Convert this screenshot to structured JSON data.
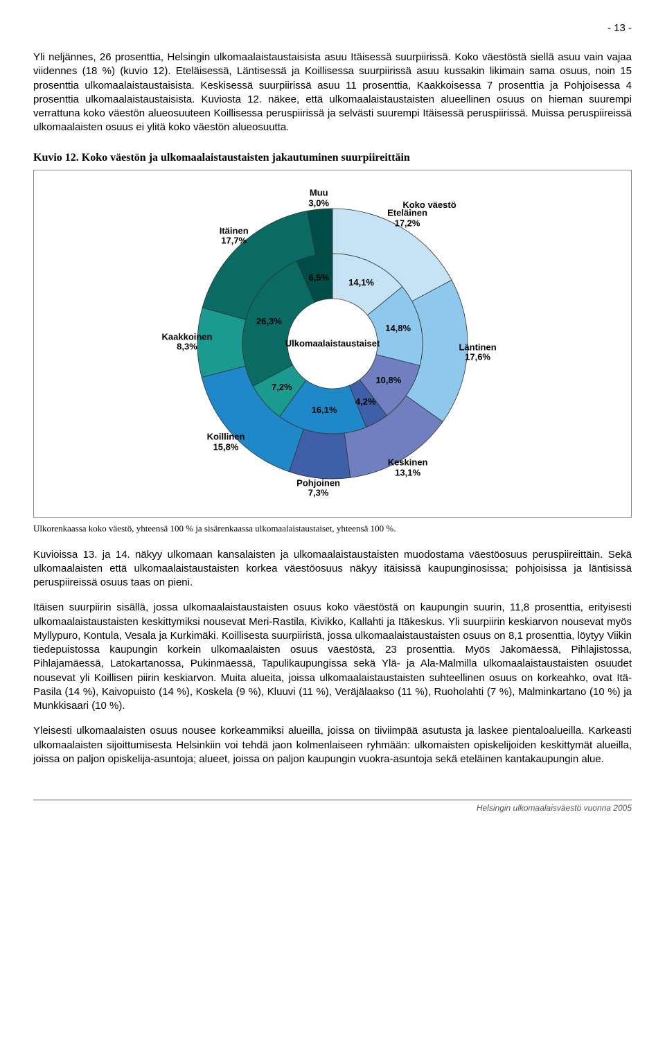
{
  "page_number": "- 13 -",
  "para1": "Yli neljännes, 26 prosenttia, Helsingin ulkomaalaistaustaisista asuu Itäisessä suurpiirissä. Koko väestöstä siellä asuu vain vajaa viidennes (18 %) (kuvio 12). Eteläisessä, Läntisessä ja Koillisessa suurpiirissä asuu kussakin likimain sama osuus, noin 15 prosenttia ulkomaalaistaustaisista. Keskisessä suurpiirissä asuu 11 prosenttia, Kaakkoisessa 7 prosenttia ja Pohjoisessa 4 prosenttia ulkomaalaistaustaisista. Kuviosta 12. näkee, että ulkomaalaistaustaisten alueellinen osuus on hieman suurempi verrattuna koko väestön alueosuuteen Koillisessa peruspiirissä ja selvästi suurempi Itäisessä peruspiirissä. Muissa peruspiireissä ulkomaalaisten osuus ei ylitä koko väestön alueosuutta.",
  "chart_heading": "Kuvio 12. Koko väestön ja ulkomaalaistaustaisten jakautuminen suurpiireittäin",
  "chart_caption": "Ulkorenkaassa koko väestö, yhteensä 100 % ja sisärenkaassa ulkomaalaistaustaiset, yhteensä 100 %.",
  "chart": {
    "type": "nested-donut",
    "outer_ring": {
      "label": "Koko väestö",
      "segments": [
        {
          "name": "Eteläinen",
          "value": 17.2,
          "color": "#c6e2f5"
        },
        {
          "name": "Läntinen",
          "value": 17.6,
          "color": "#8ec8ed"
        },
        {
          "name": "Keskinen",
          "value": 13.1,
          "color": "#6f7fbf"
        },
        {
          "name": "Pohjoinen",
          "value": 7.3,
          "color": "#3f5fa8"
        },
        {
          "name": "Koillinen",
          "value": 15.8,
          "color": "#1f88c9"
        },
        {
          "name": "Kaakkoinen",
          "value": 8.3,
          "color": "#1b9a90"
        },
        {
          "name": "Itäinen",
          "value": 17.7,
          "color": "#0a6b64"
        },
        {
          "name": "Muu",
          "value": 3.0,
          "color": "#004d47"
        }
      ]
    },
    "inner_ring": {
      "label": "Ulkomaalaistaustaiset",
      "segments": [
        {
          "name": "Eteläinen",
          "value": 14.1,
          "color": "#c6e2f5"
        },
        {
          "name": "Läntinen",
          "value": 14.8,
          "color": "#8ec8ed"
        },
        {
          "name": "Keskinen",
          "value": 10.8,
          "color": "#6f7fbf"
        },
        {
          "name": "Pohjoinen",
          "value": 4.2,
          "color": "#3f5fa8"
        },
        {
          "name": "Koillinen",
          "value": 16.1,
          "color": "#1f88c9"
        },
        {
          "name": "Kaakkoinen",
          "value": 7.2,
          "color": "#1b9a90"
        },
        {
          "name": "Itäinen",
          "value": 26.3,
          "color": "#0a6b64"
        },
        {
          "name": "Muu",
          "value": 6.5,
          "color": "#004d47"
        }
      ]
    },
    "stroke_color": "#333333",
    "background_color": "#ffffff"
  },
  "para2": "Kuvioissa 13. ja 14. näkyy ulkomaan kansalaisten ja ulkomaalaistaustaisten muodostama väestöosuus peruspiireittäin. Sekä ulkomaalaisten että ulkomaalaistaustaisten korkea väestöosuus näkyy itäisissä kaupunginosissa; pohjoisissa ja läntisissä peruspiireissä osuus taas on pieni.",
  "para3": "Itäisen suurpiirin sisällä, jossa ulkomaalaistaustaisten osuus koko väestöstä on kaupungin suurin, 11,8 prosenttia, erityisesti ulkomaalaistaustaisten keskittymiksi nousevat Meri-Rastila, Kivikko, Kallahti ja Itäkeskus. Yli suurpiirin keskiarvon nousevat myös Myllypuro, Kontula, Vesala ja Kurkimäki. Koillisesta suurpiiristä, jossa ulkomaalaistaustaisten osuus on 8,1 prosenttia, löytyy Viikin tiedepuistossa kaupungin korkein ulkomaalaisten osuus väestöstä, 23 prosenttia. Myös Jakomäessä, Pihlajistossa, Pihlajamäessä, Latokartanossa, Pukinmäessä, Tapulikaupungissa sekä Ylä- ja Ala-Malmilla ulkomaalaistaustaisten osuudet nousevat yli Koillisen piirin keskiarvon. Muita alueita, joissa ulkomaalaistaustaisten suhteellinen osuus on korkeahko, ovat Itä-Pasila (14 %), Kaivopuisto (14 %), Koskela (9 %), Kluuvi (11 %), Veräjälaakso (11 %), Ruoholahti (7 %), Malminkartano (10 %) ja Munkkisaari (10 %).",
  "para4": "Yleisesti ulkomaalaisten osuus nousee korkeammiksi alueilla, joissa on tiiviimpää asutusta ja laskee pientaloalueilla. Karkeasti ulkomaalaisten sijoittumisesta Helsinkiin voi tehdä jaon kolmenlaiseen ryhmään: ulkomaisten opiskelijoiden keskittymät alueilla, joissa on paljon opiskelija-asuntoja; alueet, joissa on paljon kaupungin vuokra-asuntoja sekä eteläinen kantakaupungin alue.",
  "footer": "Helsingin ulkomaalaisväestö vuonna 2005"
}
